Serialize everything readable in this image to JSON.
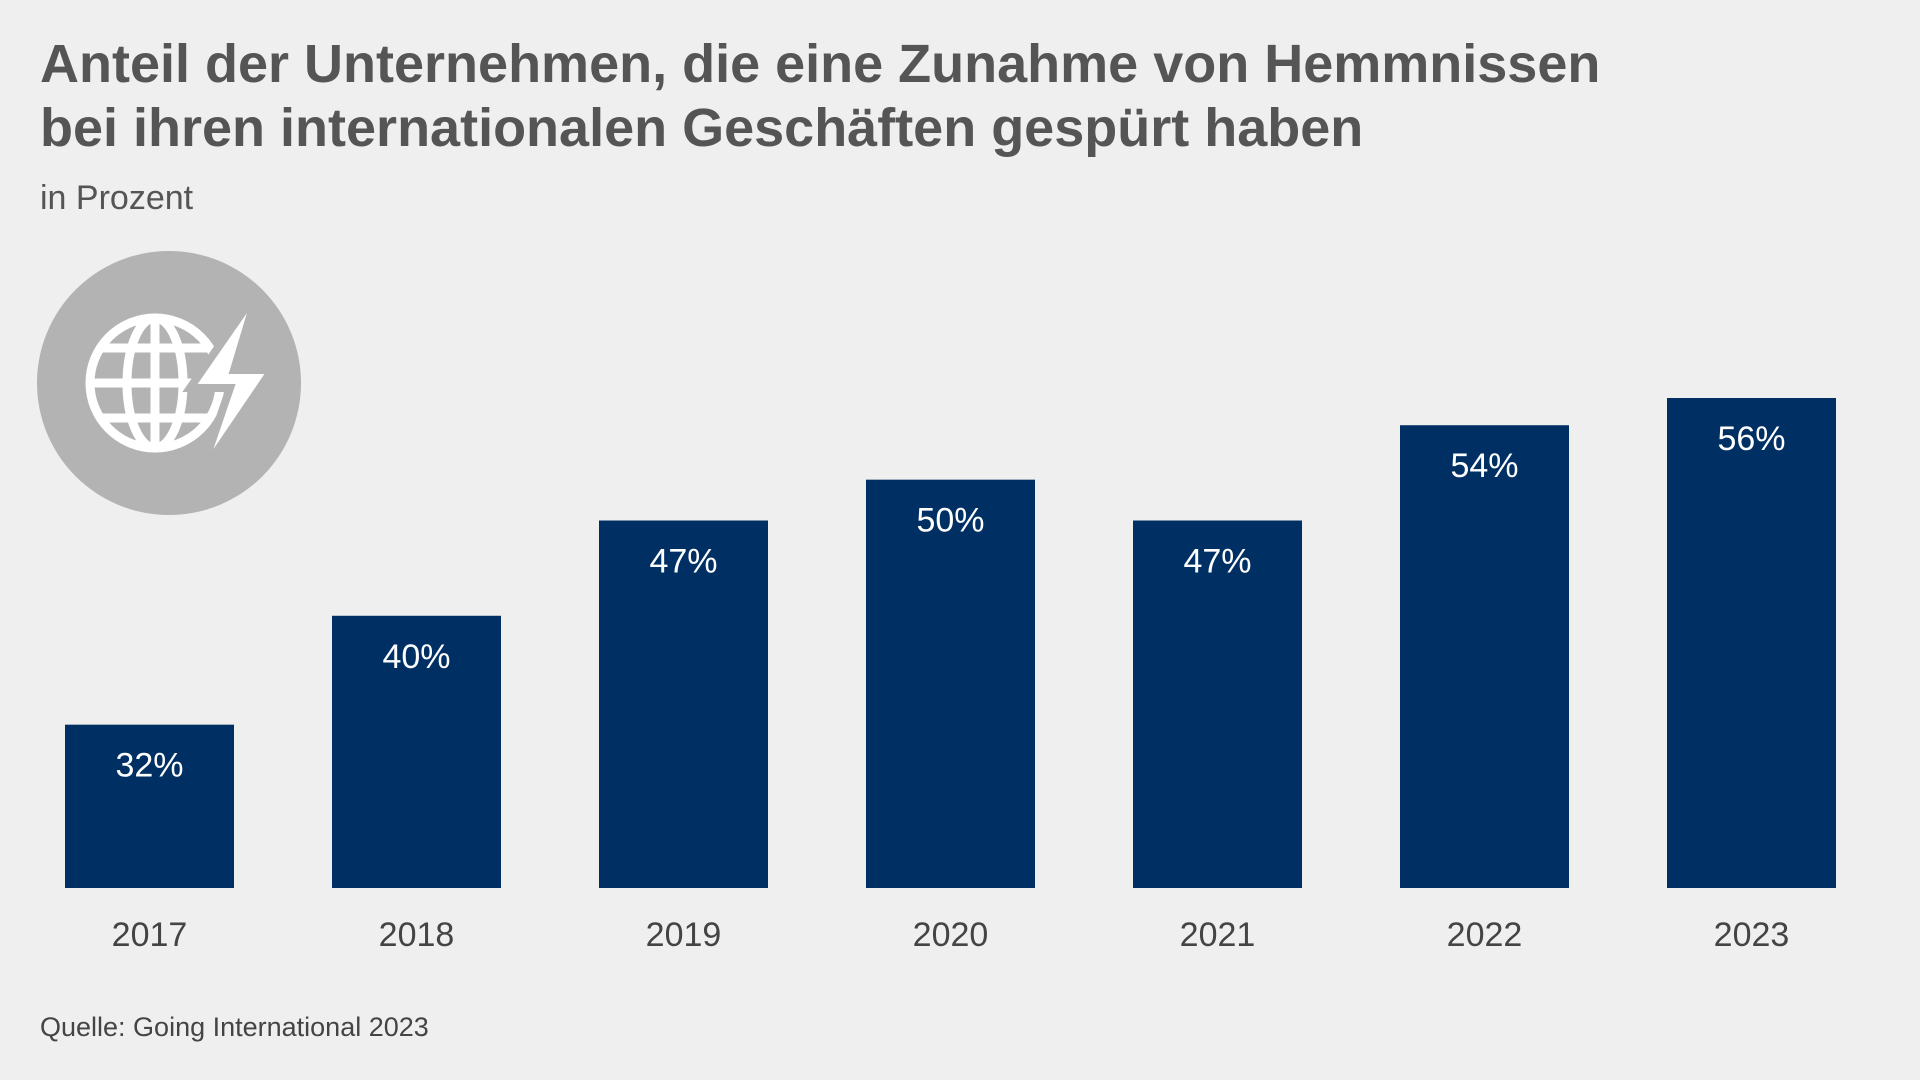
{
  "chart_data": {
    "type": "bar",
    "title": [
      "Anteil der Unternehmen, die eine Zunahme von Hemmnissen",
      "bei ihren internationalen Geschäften gespürt haben"
    ],
    "subtitle": "in Prozent",
    "source": "Quelle: Going International 2023",
    "categories": [
      "2017",
      "2018",
      "2019",
      "2020",
      "2021",
      "2022",
      "2023"
    ],
    "values": [
      32,
      40,
      47,
      50,
      47,
      54,
      56
    ],
    "value_labels": [
      "32%",
      "40%",
      "47%",
      "50%",
      "47%",
      "54%",
      "56%"
    ],
    "color": "#003063",
    "ylim": [
      20,
      56
    ]
  }
}
